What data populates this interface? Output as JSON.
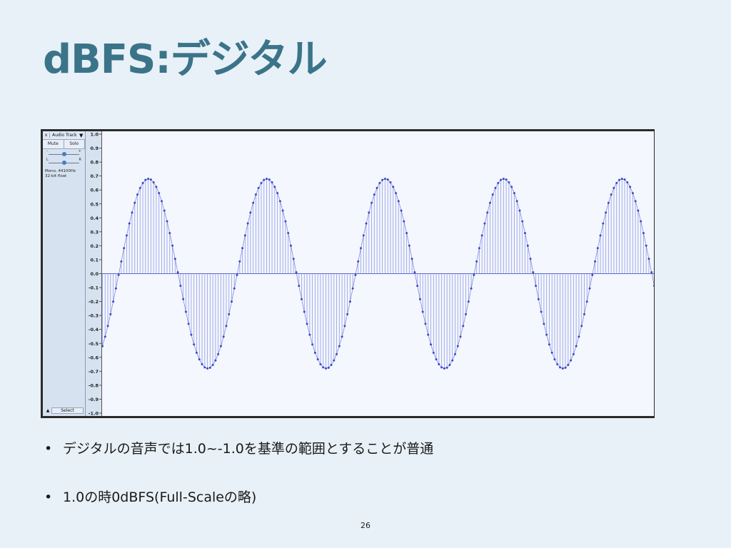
{
  "slide": {
    "title": "dBFS:デジタル",
    "bullets": [
      "デジタルの音声では1.0~-1.0を基準の範囲とすることが普通",
      "1.0の時0dBFS(Full-Scaleの略)"
    ],
    "page_number": "26"
  },
  "audacity": {
    "track_name": "Audio Track",
    "close_label": "x",
    "mute_label": "Mute",
    "solo_label": "Solo",
    "gain_minus": "-",
    "gain_plus": "+",
    "pan_left": "L",
    "pan_right": "R",
    "info_line1": "Mono, 44100Hz",
    "info_line2": "32-bit float",
    "select_label": "Select",
    "ruler_labels": [
      "1.0",
      "0.9",
      "0.8",
      "0.7",
      "0.6",
      "0.5",
      "0.4",
      "0.3",
      "0.2",
      "0.1",
      "0.0",
      "-0.1",
      "-0.2",
      "-0.3",
      "-0.4",
      "-0.5",
      "-0.6",
      "-0.7",
      "-0.8",
      "-0.9",
      "-1.0"
    ],
    "colors": {
      "wave": "#3a47c8",
      "stem": "#9aa5e6",
      "background": "#f4f7fd",
      "panel": "#d7e2f0"
    }
  },
  "chart_data": {
    "type": "line",
    "title": "",
    "xlabel": "",
    "ylabel": "",
    "ylim": [
      -1.0,
      1.0
    ],
    "amplitude": 0.68,
    "cycles_visible": 4.65,
    "samples_per_cycle": 44,
    "start_value": -0.52,
    "series": [
      {
        "values_description_source": "sampled sine",
        "peak": 0.68,
        "trough": -0.68
      }
    ]
  }
}
